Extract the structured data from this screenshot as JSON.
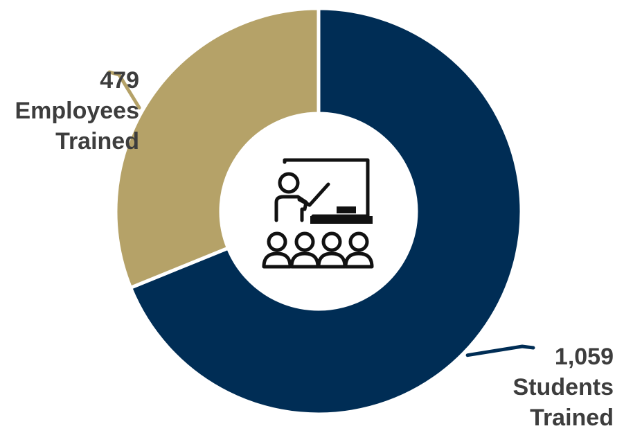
{
  "chart_data": {
    "type": "donut",
    "categories": [
      "Students Trained",
      "Employees Trained"
    ],
    "values": [
      1059,
      479
    ],
    "colors": [
      "#002d55",
      "#b5a268"
    ],
    "labels": [
      {
        "value": "1,059",
        "line1": "Students",
        "line2": "Trained"
      },
      {
        "value": "479",
        "line1": "Employees",
        "line2": "Trained"
      }
    ],
    "start_angle_deg": 0,
    "direction": "clockwise",
    "center_icon": "teacher-classroom-icon",
    "legend": "none"
  }
}
